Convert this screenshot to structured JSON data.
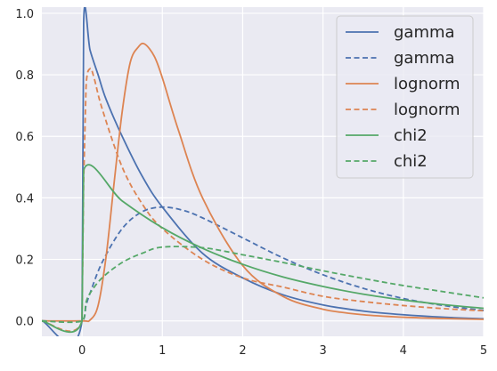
{
  "chart_data": {
    "type": "line",
    "title": "",
    "xlabel": "",
    "ylabel": "",
    "xlim": [
      -0.5,
      5
    ],
    "ylim": [
      -0.05,
      1.02
    ],
    "x_ticks": [
      0,
      1,
      2,
      3,
      4,
      5
    ],
    "y_ticks": [
      0.0,
      0.2,
      0.4,
      0.6,
      0.8,
      1.0
    ],
    "x_tick_labels": [
      "0",
      "1",
      "2",
      "3",
      "4",
      "5"
    ],
    "y_tick_labels": [
      "0.0",
      "0.2",
      "0.4",
      "0.6",
      "0.8",
      "1.0"
    ],
    "grid": true,
    "legend_position": "top-right",
    "background": "#EAEAF2",
    "series": [
      {
        "name": "gamma",
        "color": "#4C72B0",
        "style": "solid",
        "x": [
          -0.5,
          0,
          0.02,
          0.1,
          0.2,
          0.3,
          0.5,
          0.75,
          1.0,
          1.5,
          2.0,
          2.5,
          3.0,
          3.5,
          4.0,
          4.5,
          5.0
        ],
        "y": [
          0,
          0,
          0.97,
          0.88,
          0.8,
          0.72,
          0.6,
          0.47,
          0.37,
          0.22,
          0.14,
          0.085,
          0.052,
          0.032,
          0.02,
          0.012,
          0.007
        ]
      },
      {
        "name": "gamma",
        "color": "#4C72B0",
        "style": "dashed",
        "x": [
          -0.5,
          0,
          0.05,
          0.1,
          0.25,
          0.5,
          0.75,
          1.0,
          1.25,
          1.5,
          2.0,
          2.5,
          3.0,
          3.5,
          4.0,
          4.5,
          5.0
        ],
        "y": [
          0,
          0,
          0.05,
          0.09,
          0.19,
          0.3,
          0.355,
          0.37,
          0.36,
          0.335,
          0.27,
          0.205,
          0.15,
          0.106,
          0.073,
          0.05,
          0.034
        ]
      },
      {
        "name": "lognorm",
        "color": "#DD8452",
        "style": "solid",
        "x": [
          -0.5,
          0,
          0.1,
          0.2,
          0.3,
          0.4,
          0.5,
          0.6,
          0.7,
          0.78,
          0.9,
          1.0,
          1.2,
          1.5,
          2.0,
          2.5,
          3.0,
          3.5,
          4.0,
          4.5,
          5.0
        ],
        "y": [
          0,
          0,
          0.003,
          0.05,
          0.21,
          0.45,
          0.68,
          0.84,
          0.89,
          0.9,
          0.86,
          0.79,
          0.62,
          0.4,
          0.18,
          0.08,
          0.038,
          0.02,
          0.012,
          0.008,
          0.005
        ]
      },
      {
        "name": "lognorm",
        "color": "#DD8452",
        "style": "dashed",
        "x": [
          -0.5,
          0,
          0.02,
          0.05,
          0.1,
          0.15,
          0.25,
          0.5,
          0.75,
          1.0,
          1.5,
          2.0,
          2.5,
          3.0,
          3.5,
          4.0,
          4.5,
          5.0
        ],
        "y": [
          0,
          0,
          0.45,
          0.76,
          0.82,
          0.79,
          0.69,
          0.5,
          0.38,
          0.3,
          0.2,
          0.14,
          0.11,
          0.08,
          0.063,
          0.05,
          0.04,
          0.033
        ]
      },
      {
        "name": "chi2",
        "color": "#55A868",
        "style": "solid",
        "x": [
          -0.5,
          0,
          0.02,
          0.5,
          1.0,
          1.5,
          2.0,
          2.5,
          3.0,
          3.5,
          4.0,
          4.5,
          5.0
        ],
        "y": [
          0,
          0,
          0.49,
          0.39,
          0.303,
          0.236,
          0.184,
          0.143,
          0.112,
          0.087,
          0.068,
          0.053,
          0.041
        ]
      },
      {
        "name": "chi2",
        "color": "#55A868",
        "style": "dashed",
        "x": [
          -0.5,
          0,
          0.05,
          0.1,
          0.25,
          0.5,
          0.75,
          1.0,
          1.5,
          2.0,
          2.5,
          3.0,
          3.5,
          4.0,
          4.5,
          5.0
        ],
        "y": [
          0,
          0,
          0.06,
          0.09,
          0.14,
          0.19,
          0.22,
          0.24,
          0.238,
          0.215,
          0.19,
          0.163,
          0.138,
          0.115,
          0.095,
          0.075
        ]
      }
    ]
  }
}
